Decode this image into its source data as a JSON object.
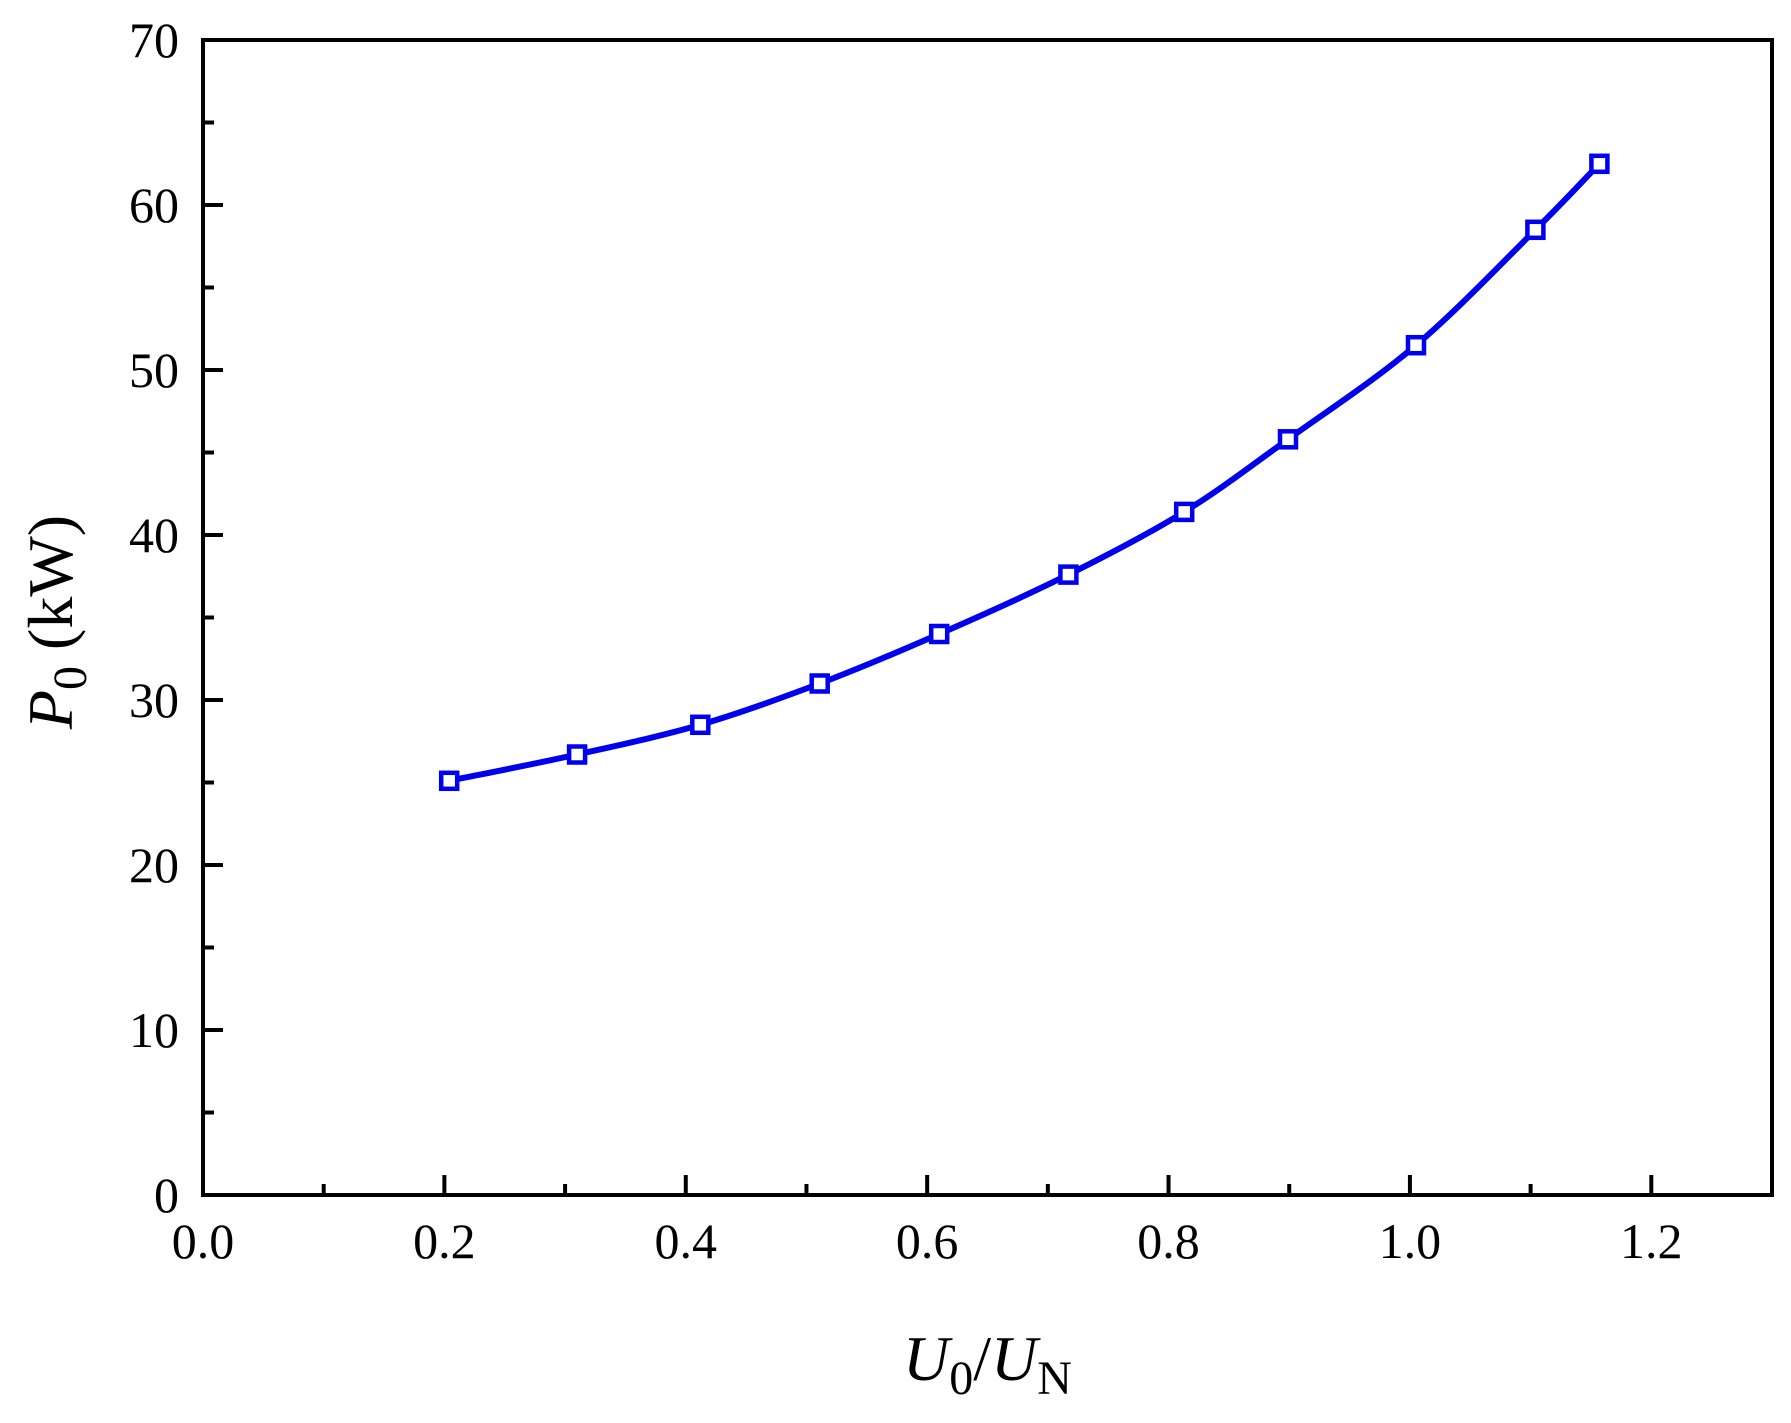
{
  "chart_data": {
    "type": "line",
    "xlabel": {
      "main": "U",
      "sub": "0",
      "slash": "/",
      "main2": "U",
      "sub2": "N"
    },
    "ylabel": {
      "main": "P",
      "sub": "0",
      "unit": " (kW)"
    },
    "xlim": [
      0.0,
      1.3
    ],
    "ylim": [
      0,
      70
    ],
    "x_ticks": [
      0.0,
      0.2,
      0.4,
      0.6,
      0.8,
      1.0,
      1.2
    ],
    "x_tick_labels": [
      "0.0",
      "0.2",
      "0.4",
      "0.6",
      "0.8",
      "1.0",
      "1.2"
    ],
    "y_ticks": [
      0,
      10,
      20,
      30,
      40,
      50,
      60,
      70
    ],
    "y_tick_labels": [
      "0",
      "10",
      "20",
      "30",
      "40",
      "50",
      "60",
      "70"
    ],
    "x_minor_ticks": [
      0.1,
      0.3,
      0.5,
      0.7,
      0.9,
      1.1
    ],
    "y_minor_ticks": [
      5,
      15,
      25,
      35,
      45,
      55,
      65
    ],
    "grid": false,
    "series": [
      {
        "color": "#0000ee",
        "marker": "open-square",
        "x": [
          0.204,
          0.31,
          0.412,
          0.511,
          0.61,
          0.717,
          0.813,
          0.899,
          1.005,
          1.104,
          1.157
        ],
        "y": [
          25.1,
          26.7,
          28.5,
          31.0,
          34.0,
          37.6,
          41.4,
          45.8,
          51.5,
          58.5,
          62.5
        ]
      }
    ]
  }
}
